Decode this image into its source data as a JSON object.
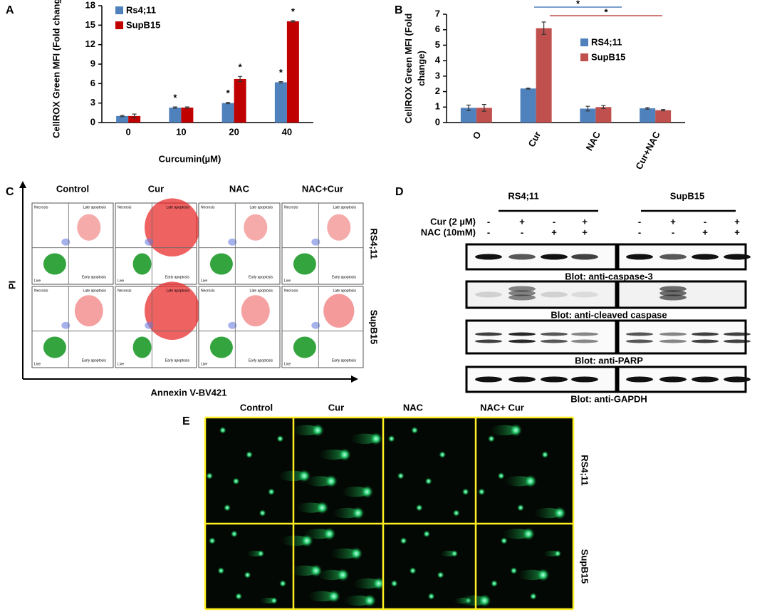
{
  "chart_data": [
    {
      "type": "bar",
      "panel": "A",
      "y_label": "CellROX Green MFI (Fold change)",
      "x_label": "Curcumin(µM)",
      "categories": [
        "0",
        "10",
        "20",
        "40"
      ],
      "series": [
        {
          "name": "Rs4;11",
          "color": "#4f81bd",
          "values": [
            1.0,
            2.3,
            3.0,
            6.2
          ],
          "errors": [
            0.1,
            0.1,
            0.1,
            0.1
          ],
          "significance": [
            null,
            "*",
            "*",
            "*"
          ]
        },
        {
          "name": "SupB15",
          "color": "#c00000",
          "values": [
            1.0,
            2.3,
            6.7,
            15.6
          ],
          "errors": [
            0.3,
            0.1,
            0.4,
            0.1
          ],
          "significance": [
            null,
            null,
            "*",
            "*"
          ]
        }
      ],
      "ylim": [
        0,
        18
      ],
      "yticks": [
        0,
        3,
        6,
        9,
        12,
        15,
        18
      ],
      "legend": "upper left",
      "grid": false
    },
    {
      "type": "bar",
      "panel": "B",
      "y_label": "CellROX Green MFI (Fold change)",
      "categories": [
        "O",
        "Cur",
        "NAC",
        "Cur+NAC"
      ],
      "series": [
        {
          "name": "RS4;11",
          "color": "#4f81bd",
          "values": [
            0.95,
            2.2,
            0.9,
            0.92
          ],
          "errors": [
            0.18,
            0.03,
            0.15,
            0.05
          ]
        },
        {
          "name": "SupB15",
          "color": "#c0504d",
          "values": [
            0.95,
            6.1,
            1.0,
            0.8
          ],
          "errors": [
            0.22,
            0.4,
            0.1,
            0.04
          ]
        }
      ],
      "significance_bars": [
        {
          "text": "*",
          "color": "#4f81bd"
        },
        {
          "text": "*",
          "color": "#c0504d"
        }
      ],
      "ylim": [
        0,
        7
      ],
      "yticks": [
        0,
        1,
        2,
        3,
        4,
        5,
        6,
        7
      ],
      "legend": "center right",
      "grid": false
    }
  ],
  "flow_cytometry": {
    "panel": "C",
    "columns": [
      "Control",
      "Cur",
      "NAC",
      "NAC+Cur"
    ],
    "rows": [
      "RS4;11",
      "SupB15"
    ],
    "quadrants": [
      "Necrosis",
      "Late apoptosis",
      "Live",
      "Early apoptosis"
    ],
    "y_axis": "PI",
    "x_axis": "Annexin V-BV421"
  },
  "western_blot": {
    "panel": "D",
    "groups": [
      "RS4;11",
      "SupB15"
    ],
    "treatments": [
      {
        "label": "Cur (2 µM)",
        "signs": [
          "-",
          "+",
          "-",
          "+"
        ]
      },
      {
        "label": "NAC (10mM)",
        "signs": [
          "-",
          "-",
          "+",
          "+"
        ]
      }
    ],
    "blots": [
      "Blot: anti-caspase-3",
      "Blot: anti-cleaved caspase",
      "Blot: anti-PARP",
      "Blot: anti-GAPDH"
    ]
  },
  "comet_assay": {
    "panel": "E",
    "columns": [
      "Control",
      "Cur",
      "NAC",
      "NAC+ Cur"
    ],
    "rows": [
      "RS4;11",
      "SupB15"
    ]
  }
}
